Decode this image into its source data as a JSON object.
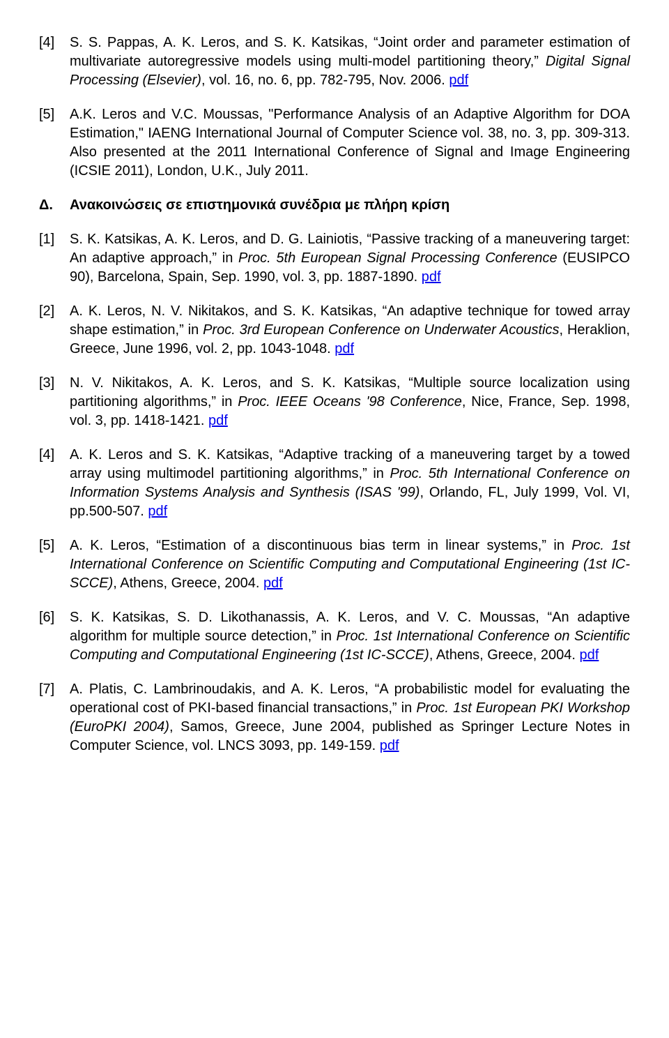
{
  "top": [
    {
      "num": "[4]",
      "pre": "S. S. Pappas, A. K. Leros, and S. K. Katsikas, ",
      "title": "Joint order and parameter estimation of multivariate autoregressive models using multi-model partitioning theory,",
      "mid": " ",
      "journal": "Digital Signal Processing (Elsevier)",
      "post": ", vol. 16, no. 6, pp. 782-795, Nov. 2006. ",
      "link": "pdf"
    },
    {
      "num": "[5]",
      "pre": "A.K. Leros and V.C. Moussas, \"Performance Analysis of an Adaptive Algorithm for DOA Estimation,\" IAENG International Journal of Computer Science vol. 38, no. 3, pp. 309-313. Also presented at the 2011 International Conference of Signal and Image Engineering (ICSIE 2011), London, U.K., July 2011.",
      "title": "",
      "mid": "",
      "journal": "",
      "post": "",
      "link": ""
    }
  ],
  "section": {
    "label": "Δ.",
    "title": "Ανακοινώσεις σε επιστημονικά συνέδρια με πλήρη κρίση"
  },
  "conf": [
    {
      "num": "[1]",
      "pre": "S. K. Katsikas, A. K. Leros, and D. G. Lainiotis, ",
      "title": "Passive tracking of a maneuvering target: An adaptive approach,",
      "mid": " in ",
      "journal": "Proc. 5th European Signal Processing Conference",
      "post": " (EUSIPCO 90), Barcelona, Spain, Sep. 1990, vol. 3, pp. 1887-1890. ",
      "link": "pdf"
    },
    {
      "num": "[2]",
      "pre": "A. K. Leros, N. V. Nikitakos, and S. K. Katsikas, ",
      "title": "An adaptive technique for towed array shape estimation,",
      "mid": " in ",
      "journal": "Proc. 3rd European Conference on Underwater Acoustics",
      "post": ", Heraklion, Greece, June 1996, vol. 2, pp. 1043-1048. ",
      "link": "pdf"
    },
    {
      "num": "[3]",
      "pre": "N. V. Nikitakos, A. K. Leros, and S. K. Katsikas, ",
      "title": "Multiple source localization using partitioning algorithms,",
      "mid": " in ",
      "journal": "Proc. IEEE Oceans '98 Conference",
      "post": ", Nice, France, Sep. 1998, vol. 3, pp. 1418-1421. ",
      "link": "pdf"
    },
    {
      "num": "[4]",
      "pre": "A. K. Leros and S. K. Katsikas, ",
      "title": "Adaptive tracking of a maneuvering target by a towed array using multimodel partitioning algorithms,",
      "mid": " in ",
      "journal": "Proc. 5th International Conference on Information Systems Analysis and Synthesis (ISAS '99)",
      "post": ", Orlando, FL, July 1999, Vol. VI, pp.500-507. ",
      "link": "pdf"
    },
    {
      "num": "[5]",
      "pre": "A. K. Leros, ",
      "title": "Estimation of a discontinuous bias term in linear systems,",
      "mid": " in ",
      "journal": "Proc. 1st International Conference on Scientific Computing and Computational Engineering (1st IC-SCCE)",
      "post": ", Athens, Greece, 2004. ",
      "link": "pdf"
    },
    {
      "num": "[6]",
      "pre": "S. K. Katsikas, S. D. Likothanassis, A. K. Leros, and V. C. Moussas, ",
      "title": "An adaptive algorithm for multiple source detection,",
      "mid": " in ",
      "journal": "Proc. 1st International Conference on Scientific Computing and Computational Engineering (1st IC-SCCE)",
      "post": ", Athens, Greece, 2004. ",
      "link": "pdf"
    },
    {
      "num": "[7]",
      "pre": "A. Platis, C. Lambrinoudakis, and A. K. Leros, ",
      "title": "A probabilistic model for evaluating the operational cost of PKI-based financial transactions,",
      "mid": " in ",
      "journal": "Proc. 1st European PKI Workshop (EuroPKI 2004)",
      "post": ", Samos, Greece, June 2004, published as Springer Lecture Notes in Computer Science, vol. LNCS 3093, pp. 149-159. ",
      "link": "pdf"
    }
  ]
}
